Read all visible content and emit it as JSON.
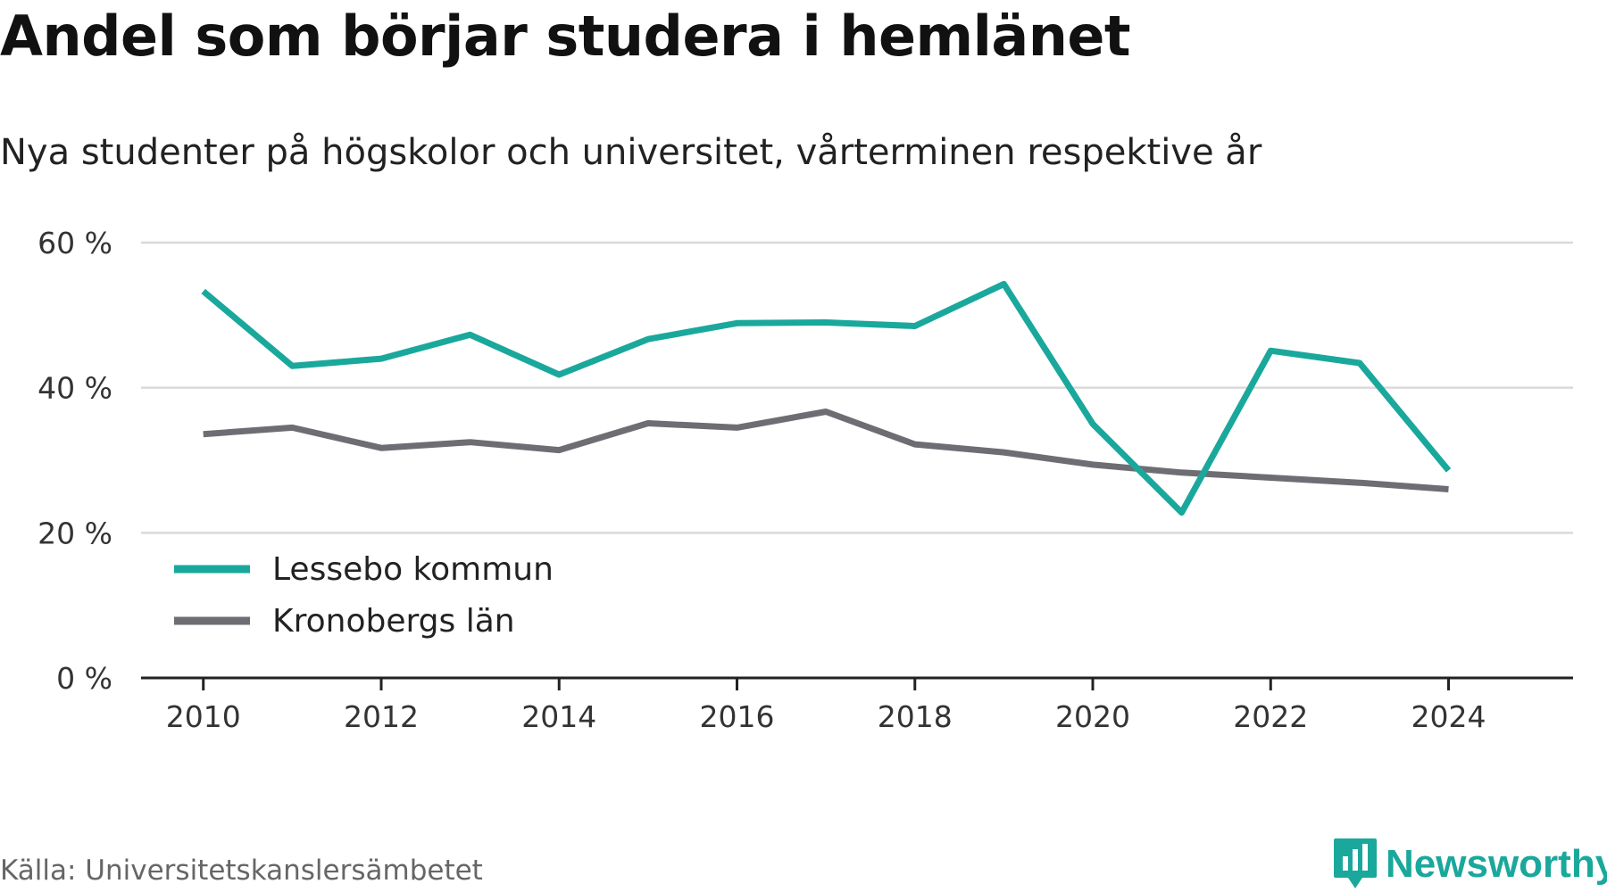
{
  "title": "Andel som börjar studera i hemlänet",
  "subtitle": "Nya studenter på högskolor och universitet, vårterminen respektive år",
  "source": "Källa: Universitetskanslersämbetet",
  "brand": "Newsworthy",
  "colors": {
    "lessebo": "#1aa89c",
    "kronoberg": "#6e6d74",
    "grid": "#d9d9d9",
    "axis": "#222222",
    "brand": "#1aa89c"
  },
  "icons": {
    "brand_logo": "bar-chart-badge-icon"
  },
  "chart_data": {
    "type": "line",
    "title": "Andel som börjar studera i hemlänet",
    "xlabel": "",
    "ylabel": "",
    "x": [
      2010,
      2011,
      2012,
      2013,
      2014,
      2015,
      2016,
      2017,
      2018,
      2019,
      2020,
      2021,
      2022,
      2023,
      2024
    ],
    "xlim": [
      2009.3,
      2025.4
    ],
    "ylim": [
      0,
      60
    ],
    "xticks": [
      2010,
      2012,
      2014,
      2016,
      2018,
      2020,
      2022,
      2024
    ],
    "xtick_labels": [
      "2010",
      "2012",
      "2014",
      "2016",
      "2018",
      "2020",
      "2022",
      "2024"
    ],
    "yticks": [
      0,
      20,
      40,
      60
    ],
    "ytick_labels": [
      "0 %",
      "20 %",
      "40 %",
      "60 %"
    ],
    "grid": true,
    "legend_position": "bottom-left",
    "series": [
      {
        "name": "Lessebo kommun",
        "color": "#1aa89c",
        "values": [
          53.3,
          43.0,
          44.0,
          47.3,
          41.8,
          46.7,
          48.9,
          49.0,
          48.5,
          54.3,
          35.0,
          22.8,
          45.1,
          43.4,
          28.6
        ]
      },
      {
        "name": "Kronobergs län",
        "color": "#6e6d74",
        "values": [
          33.6,
          34.5,
          31.7,
          32.5,
          31.4,
          35.1,
          34.5,
          36.7,
          32.2,
          31.1,
          29.4,
          28.3,
          27.6,
          26.9,
          26.0
        ]
      }
    ]
  }
}
